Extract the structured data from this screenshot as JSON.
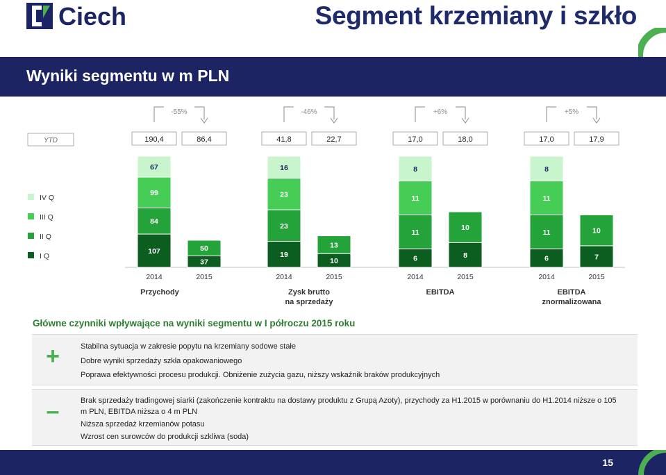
{
  "header": {
    "logo_text": "Ciech",
    "title": "Segment krzemiany i szkło"
  },
  "banner": {
    "title": "Wyniki segmentu w m PLN"
  },
  "colors": {
    "q1": "#0b5e1f",
    "q2": "#23a33a",
    "q3": "#46cd55",
    "q4": "#c9f5cc",
    "navy": "#1c2463",
    "accent": "#4caf50"
  },
  "chart_data": {
    "type": "bar",
    "stacked": true,
    "ytd_label": "YTD",
    "legend": [
      "IV Q",
      "III Q",
      "II Q",
      "I Q"
    ],
    "legend_placement": "left",
    "groups": [
      {
        "label": "Przychody",
        "label_line2": "",
        "change": "-55%",
        "bars": [
          {
            "year": "2014",
            "ytd": "190,4",
            "quarters": [
              107,
              84,
              99,
              67
            ]
          },
          {
            "year": "2015",
            "ytd": "86,4",
            "quarters": [
              37,
              50
            ]
          }
        ]
      },
      {
        "label": "Zysk brutto",
        "label_line2": "na sprzedaży",
        "change": "-46%",
        "bars": [
          {
            "year": "2014",
            "ytd": "41,8",
            "quarters": [
              19,
              23,
              23,
              16
            ]
          },
          {
            "year": "2015",
            "ytd": "22,7",
            "quarters": [
              10,
              13
            ]
          }
        ]
      },
      {
        "label": "EBITDA",
        "label_line2": "",
        "change": "+6%",
        "bars": [
          {
            "year": "2014",
            "ytd": "17,0",
            "quarters": [
              6,
              11,
              11,
              8
            ]
          },
          {
            "year": "2015",
            "ytd": "18,0",
            "quarters": [
              8,
              10
            ]
          }
        ]
      },
      {
        "label": "EBITDA",
        "label_line2": "znormalizowana",
        "change": "+5%",
        "bars": [
          {
            "year": "2014",
            "ytd": "17,0",
            "quarters": [
              6,
              11,
              11,
              8
            ]
          },
          {
            "year": "2015",
            "ytd": "17,9",
            "quarters": [
              7,
              10
            ]
          }
        ]
      }
    ]
  },
  "factors": {
    "title": "Główne czynniki wpływające na wyniki segmentu w I półroczu 2015 roku",
    "plus_sign": "+",
    "minus_sign": "–",
    "positive": [
      "Stabilna sytuacja w zakresie popytu na krzemiany sodowe stałe",
      "Dobre wyniki sprzedaży szkła opakowaniowego",
      "Poprawa efektywności procesu produkcji. Obniżenie zużycia gazu, niższy wskaźnik braków produkcyjnych"
    ],
    "negative": [
      "Brak sprzedaży tradingowej siarki (zakończenie kontraktu na dostawy produktu z Grupą Azoty), przychody za H1.2015 w porównaniu do H1.2014 niższe o 105 m PLN, EBITDA niższa o 4 m PLN",
      "Niższa sprzedaż krzemianów potasu",
      "Wzrost cen surowców do produkcji szkliwa (soda)"
    ]
  },
  "footer": {
    "page_number": "15"
  }
}
